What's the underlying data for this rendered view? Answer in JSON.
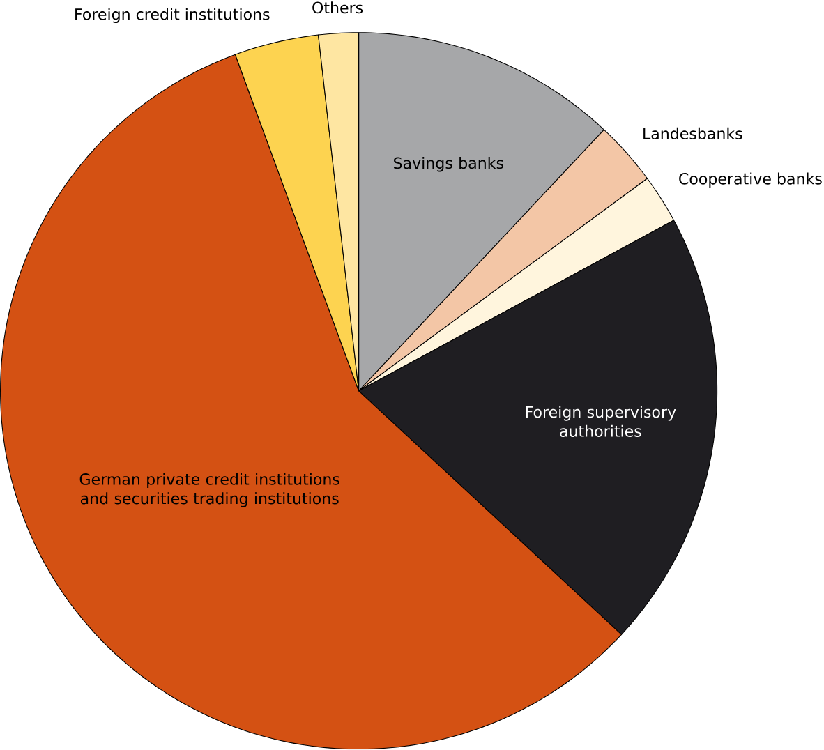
{
  "chart_data": {
    "type": "pie",
    "categories": [
      "Savings banks",
      "Landesbanks",
      "Cooperative banks",
      "Foreign supervisory authorities",
      "German private credit institutions and securities trading institutions",
      "Foreign credit institutions",
      "Others"
    ],
    "values": [
      12,
      2.9,
      2.2,
      19.8,
      57.5,
      3.8,
      1.8
    ],
    "colors": [
      "#a6a7a9",
      "#f3c6a6",
      "#fff5dd",
      "#1f1e22",
      "#d45113",
      "#fdd350",
      "#fee6a2"
    ]
  }
}
